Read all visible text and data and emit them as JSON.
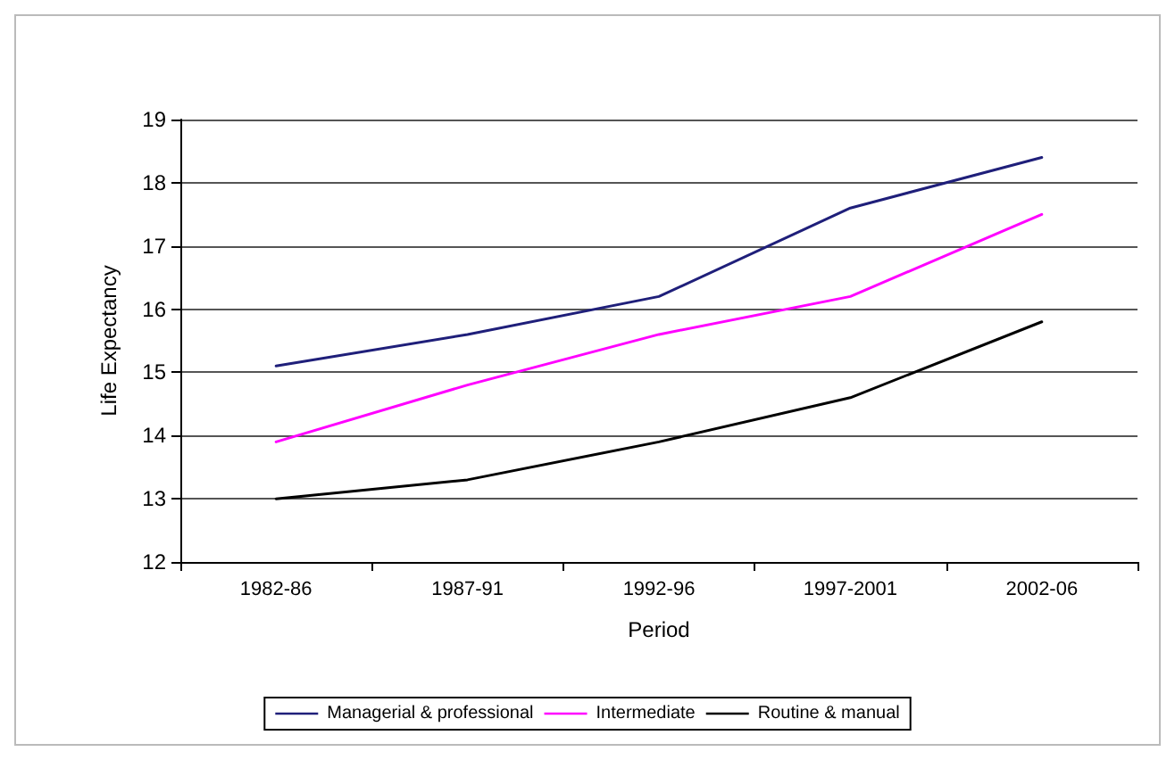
{
  "chart_data": {
    "type": "line",
    "xlabel": "Period",
    "ylabel": "Life Expectancy",
    "categories": [
      "1982-86",
      "1987-91",
      "1992-96",
      "1997-2001",
      "2002-06"
    ],
    "series": [
      {
        "name": "Managerial & professional",
        "color": "#1f1f7a",
        "values": [
          15.1,
          15.6,
          16.2,
          17.6,
          18.4
        ]
      },
      {
        "name": "Intermediate",
        "color": "#ff00ff",
        "values": [
          13.9,
          14.8,
          15.6,
          16.2,
          17.5
        ]
      },
      {
        "name": "Routine & manual",
        "color": "#000000",
        "values": [
          13.0,
          13.3,
          13.9,
          14.6,
          15.8
        ]
      }
    ],
    "ylim": [
      12,
      19
    ],
    "yticks": [
      12,
      13,
      14,
      15,
      16,
      17,
      18,
      19
    ],
    "grid": "y",
    "legend": "bottom",
    "marker": "none",
    "line_style": "solid"
  }
}
